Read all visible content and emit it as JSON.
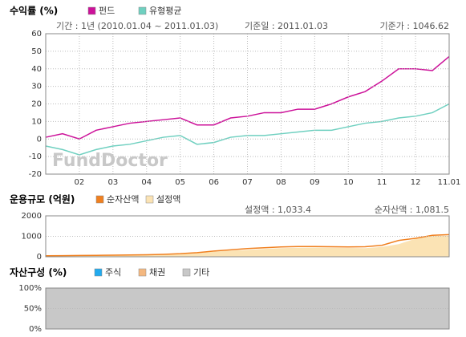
{
  "chart_data": [
    {
      "type": "line",
      "title": "수익률 (%)",
      "info": [
        "기간 : 1년 (2010.01.04 ~ 2011.01.03)",
        "기준일 : 2011.01.03",
        "기준가 : 1046.62"
      ],
      "watermark": "FundDoctor",
      "x": [
        0,
        0.5,
        1,
        1.5,
        2,
        2.5,
        3,
        3.5,
        4,
        4.5,
        5,
        5.5,
        6,
        6.5,
        7,
        7.5,
        8,
        8.5,
        9,
        9.5,
        10,
        10.5,
        11,
        11.5,
        12
      ],
      "series": [
        {
          "name": "펀드",
          "color": "#cc1199",
          "values": [
            1,
            3,
            0,
            5,
            7,
            9,
            10,
            11,
            12,
            8,
            8,
            12,
            13,
            15,
            15,
            17,
            17,
            20,
            24,
            27,
            33,
            40,
            40,
            39,
            47
          ]
        },
        {
          "name": "유형평균",
          "color": "#6fd0c0",
          "values": [
            -4,
            -6,
            -9,
            -6,
            -4,
            -3,
            -1,
            1,
            2,
            -3,
            -2,
            1,
            2,
            2,
            3,
            4,
            5,
            5,
            7,
            9,
            10,
            12,
            13,
            15,
            20
          ]
        }
      ],
      "xlim": [
        0,
        12
      ],
      "xticks": [
        {
          "value": 1,
          "label": "02"
        },
        {
          "value": 2,
          "label": "03"
        },
        {
          "value": 3,
          "label": "04"
        },
        {
          "value": 4,
          "label": "05"
        },
        {
          "value": 5,
          "label": "06"
        },
        {
          "value": 6,
          "label": "07"
        },
        {
          "value": 7,
          "label": "08"
        },
        {
          "value": 8,
          "label": "09"
        },
        {
          "value": 9,
          "label": "10"
        },
        {
          "value": 10,
          "label": "11"
        },
        {
          "value": 11,
          "label": "12"
        },
        {
          "value": 12,
          "label": "11.01"
        }
      ],
      "ylim": [
        -20,
        60
      ],
      "yticks": [
        -20,
        -10,
        0,
        10,
        20,
        30,
        40,
        50,
        60
      ],
      "grid": true
    },
    {
      "type": "line",
      "title": "운용규모 (억원)",
      "info": [
        "설정액 : 1,033.4",
        "순자산액 : 1,081.5"
      ],
      "x": [
        0,
        0.5,
        1,
        1.5,
        2,
        2.5,
        3,
        3.5,
        4,
        4.5,
        5,
        5.5,
        6,
        6.5,
        7,
        7.5,
        8,
        8.5,
        9,
        9.5,
        10,
        10.5,
        11,
        11.5,
        12
      ],
      "series": [
        {
          "name": "순자산액",
          "color": "#f08020",
          "values": [
            50,
            55,
            65,
            70,
            80,
            90,
            100,
            120,
            150,
            200,
            280,
            340,
            400,
            440,
            480,
            500,
            500,
            490,
            480,
            490,
            560,
            800,
            900,
            1050,
            1081.5
          ]
        },
        {
          "name": "설정액",
          "color": "#fbe3b4",
          "fill": true,
          "values": [
            45,
            50,
            60,
            65,
            75,
            85,
            95,
            110,
            140,
            180,
            250,
            300,
            340,
            380,
            420,
            440,
            450,
            440,
            430,
            420,
            480,
            620,
            880,
            1020,
            1033.4
          ]
        }
      ],
      "xlim": [
        0,
        12
      ],
      "ylim": [
        0,
        2000
      ],
      "yticks": [
        0,
        1000,
        2000
      ],
      "grid": true
    },
    {
      "type": "stacked_area",
      "title": "자산구성 (%)",
      "x": [
        0,
        12
      ],
      "series": [
        {
          "name": "주식",
          "color": "#22aaee",
          "values": [
            0,
            0
          ]
        },
        {
          "name": "채권",
          "color": "#f4b880",
          "values": [
            0,
            0
          ]
        },
        {
          "name": "기타",
          "color": "#c8c8c8",
          "values": [
            100,
            100
          ]
        }
      ],
      "xlim": [
        0,
        12
      ],
      "ylim": [
        0,
        100
      ],
      "yticks": [
        {
          "value": 0,
          "label": "0%"
        },
        {
          "value": 50,
          "label": "50%"
        },
        {
          "value": 100,
          "label": "100%"
        }
      ],
      "grid": true
    }
  ]
}
